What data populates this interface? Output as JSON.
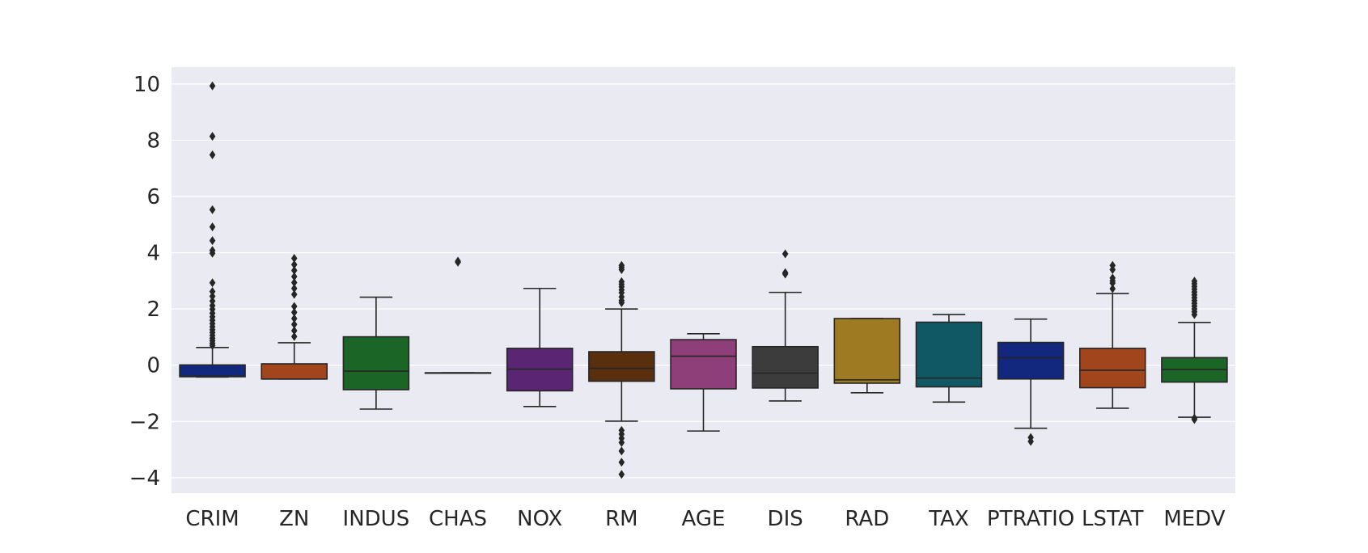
{
  "chart_data": {
    "type": "boxplot",
    "title": "",
    "xlabel": "",
    "ylabel": "",
    "ylim": [
      -4.55,
      10.6
    ],
    "yticks": [
      -4,
      -2,
      0,
      2,
      4,
      6,
      8,
      10
    ],
    "ytick_labels": [
      "−4",
      "−2",
      "0",
      "2",
      "4",
      "6",
      "8",
      "10"
    ],
    "grid": true,
    "legend": "none",
    "background_color": "#eaeaf2",
    "categories": [
      "CRIM",
      "ZN",
      "INDUS",
      "CHAS",
      "NOX",
      "RM",
      "AGE",
      "DIS",
      "RAD",
      "TAX",
      "PTRATIO",
      "LSTAT",
      "MEDV"
    ],
    "boxes": [
      {
        "label": "CRIM",
        "color": "#12277e",
        "whislo": -0.42,
        "q1": -0.41,
        "med": -0.39,
        "q3": 0.01,
        "whishi": 0.63,
        "fliers": [
          9.93,
          8.14,
          7.48,
          5.53,
          4.92,
          4.43,
          4.08,
          3.98,
          2.93,
          2.62,
          2.45,
          2.28,
          2.12,
          1.99,
          1.85,
          1.72,
          1.6,
          1.48,
          1.37,
          1.26,
          1.16,
          1.06,
          0.96,
          0.87,
          0.78,
          0.7
        ]
      },
      {
        "label": "ZN",
        "color": "#a1461c",
        "whislo": -0.49,
        "q1": -0.49,
        "med": -0.49,
        "q3": 0.05,
        "whishi": 0.8,
        "fliers": [
          3.8,
          3.58,
          3.37,
          3.15,
          2.94,
          2.73,
          2.52,
          2.09,
          1.88,
          1.66,
          1.45,
          1.23,
          1.02
        ]
      },
      {
        "label": "INDUS",
        "color": "#1b6626",
        "whislo": -1.56,
        "q1": -0.87,
        "med": -0.21,
        "q3": 1.01,
        "whishi": 2.42,
        "fliers": []
      },
      {
        "label": "CHAS",
        "color": "#5a2572",
        "whislo": -0.27,
        "q1": -0.27,
        "med": -0.27,
        "q3": -0.27,
        "whishi": -0.27,
        "fliers": [
          3.66,
          3.7
        ]
      },
      {
        "label": "NOX",
        "color": "#5a2572",
        "whislo": -1.47,
        "q1": -0.91,
        "med": -0.14,
        "q3": 0.6,
        "whishi": 2.73,
        "fliers": []
      },
      {
        "label": "RM",
        "color": "#592f0d",
        "whislo": -1.99,
        "q1": -0.57,
        "med": -0.11,
        "q3": 0.48,
        "whishi": 2.0,
        "fliers": [
          3.55,
          3.48,
          3.4,
          2.97,
          2.88,
          2.79,
          2.68,
          2.58,
          2.43,
          2.3,
          2.22,
          -2.32,
          -2.45,
          -2.6,
          -2.75,
          -3.05,
          -3.45,
          -3.88
        ]
      },
      {
        "label": "AGE",
        "color": "#8e3e78",
        "whislo": -2.34,
        "q1": -0.84,
        "med": 0.32,
        "q3": 0.91,
        "whishi": 1.12,
        "fliers": []
      },
      {
        "label": "DIS",
        "color": "#3c3c3c",
        "whislo": -1.27,
        "q1": -0.81,
        "med": -0.28,
        "q3": 0.66,
        "whishi": 2.59,
        "fliers": [
          3.96,
          3.29,
          3.24
        ]
      },
      {
        "label": "RAD",
        "color": "#9e7a22",
        "whislo": -0.98,
        "q1": -0.64,
        "med": -0.52,
        "q3": 1.66,
        "whishi": 1.66,
        "fliers": []
      },
      {
        "label": "TAX",
        "color": "#105964",
        "whislo": -1.31,
        "q1": -0.77,
        "med": -0.46,
        "q3": 1.53,
        "whishi": 1.8,
        "fliers": []
      },
      {
        "label": "PTRATIO",
        "color": "#12277e",
        "whislo": -2.24,
        "q1": -0.49,
        "med": 0.27,
        "q3": 0.81,
        "whishi": 1.64,
        "fliers": [
          -2.57,
          -2.71
        ]
      },
      {
        "label": "LSTAT",
        "color": "#a1461c",
        "whislo": -1.53,
        "q1": -0.8,
        "med": -0.18,
        "q3": 0.6,
        "whishi": 2.55,
        "fliers": [
          3.55,
          3.4,
          3.1,
          3.0,
          2.92,
          2.72
        ]
      },
      {
        "label": "MEDV",
        "color": "#1b6626",
        "whislo": -1.85,
        "q1": -0.6,
        "med": -0.15,
        "q3": 0.27,
        "whishi": 1.52,
        "fliers": [
          2.99,
          2.9,
          2.8,
          2.7,
          2.6,
          2.5,
          2.4,
          2.3,
          2.2,
          2.1,
          2.0,
          1.9,
          1.8,
          -1.88,
          -1.93
        ]
      }
    ]
  }
}
